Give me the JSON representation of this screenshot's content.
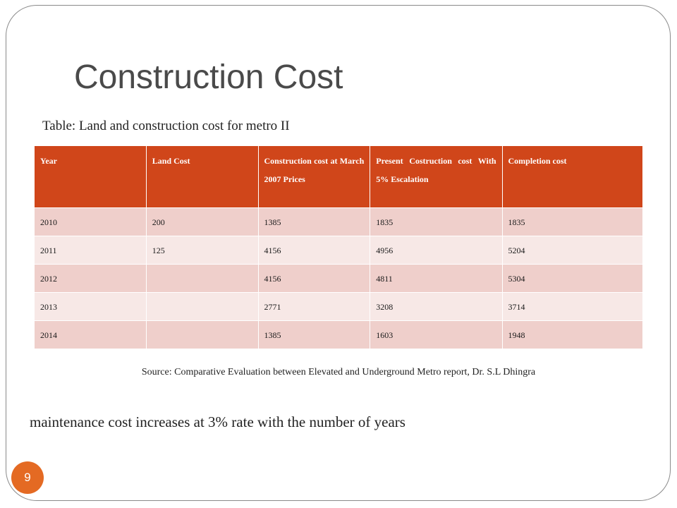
{
  "slide": {
    "title": "Construction Cost",
    "caption": "Table: Land and construction cost for metro II",
    "source": "Source: Comparative Evaluation between Elevated and Underground Metro report, Dr. S.L Dhingra",
    "note": "maintenance cost increases at 3% rate with the number of years",
    "page_number": "9"
  },
  "colors": {
    "header_bg": "#d0461a",
    "row_odd_bg": "#efcfcb",
    "row_even_bg": "#f7e8e6",
    "badge_bg": "#e46a23"
  },
  "table": {
    "headers": [
      "Year",
      "Land Cost",
      "Construction cost at March 2007 Prices",
      "Present Costruction cost With 5% Escalation",
      "Completion cost"
    ],
    "rows": [
      [
        "2010",
        "200",
        "1385",
        "1835",
        "1835"
      ],
      [
        "2011",
        "125",
        "4156",
        "4956",
        "5204"
      ],
      [
        "2012",
        "",
        "4156",
        "4811",
        "5304"
      ],
      [
        "2013",
        "",
        "2771",
        "3208",
        "3714"
      ],
      [
        "2014",
        "",
        "1385",
        "1603",
        "1948"
      ]
    ]
  }
}
